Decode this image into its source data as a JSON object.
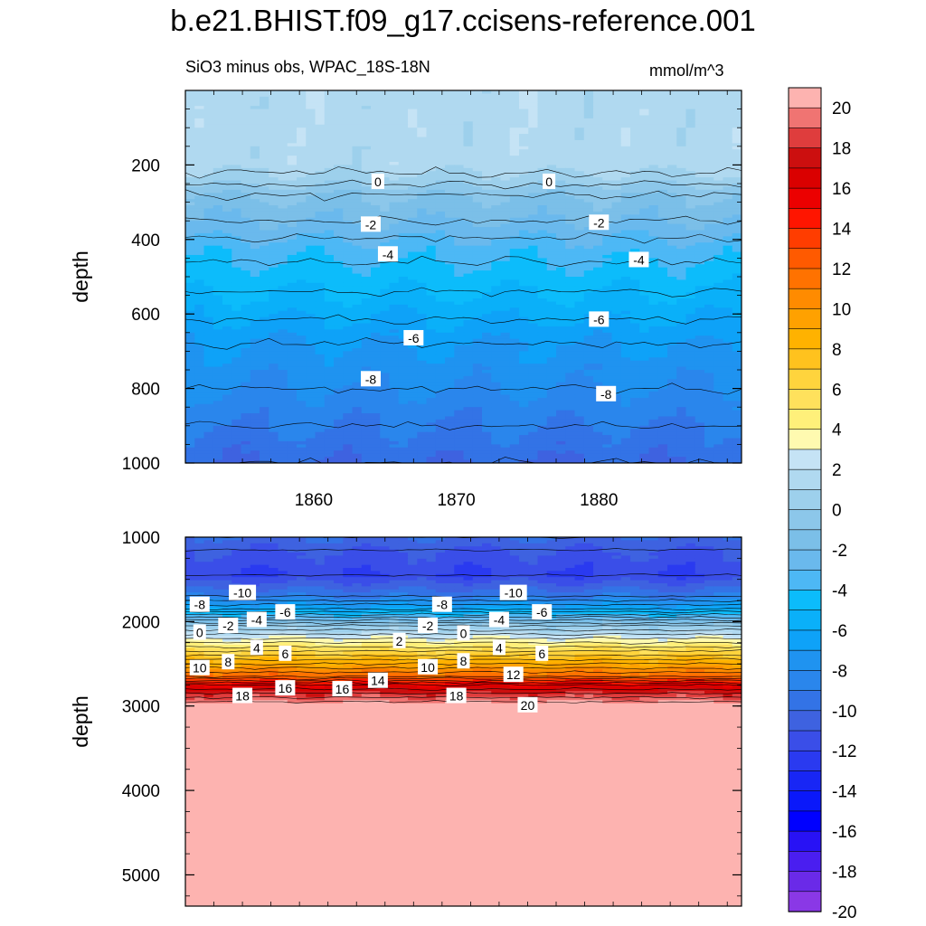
{
  "title": "b.e21.BHIST.f09_g17.ccisens-reference.001",
  "subtitle": "SiO3 minus obs, WPAC_18S-18N",
  "units": "mmol/m^3",
  "chart_data": {
    "type": "heatmap",
    "description": "Depth-time contour plot (filled), two panels",
    "x": {
      "label": "",
      "range": [
        1851,
        1890
      ],
      "ticks": [
        1860,
        1870,
        1880
      ]
    },
    "panels": [
      {
        "name": "upper",
        "ylabel": "depth",
        "yrange": [
          0,
          1000
        ],
        "yticks": [
          200,
          400,
          600,
          800,
          1000
        ],
        "profile": [
          {
            "depth": 0,
            "value": 1.5
          },
          {
            "depth": 200,
            "value": 1.5
          },
          {
            "depth": 240,
            "value": 0.5
          },
          {
            "depth": 280,
            "value": -1
          },
          {
            "depth": 350,
            "value": -2
          },
          {
            "depth": 420,
            "value": -3.5
          },
          {
            "depth": 500,
            "value": -4.5
          },
          {
            "depth": 580,
            "value": -5.5
          },
          {
            "depth": 680,
            "value": -7
          },
          {
            "depth": 800,
            "value": -8
          },
          {
            "depth": 900,
            "value": -9
          },
          {
            "depth": 1000,
            "value": -10
          }
        ],
        "contour_labels": [
          {
            "text": "0",
            "x": 1864.5,
            "depth": 245
          },
          {
            "text": "0",
            "x": 1876.5,
            "depth": 245
          },
          {
            "text": "-2",
            "x": 1864.0,
            "depth": 360
          },
          {
            "text": "-2",
            "x": 1880.0,
            "depth": 355
          },
          {
            "text": "-4",
            "x": 1865.2,
            "depth": 440
          },
          {
            "text": "-4",
            "x": 1882.8,
            "depth": 455
          },
          {
            "text": "-6",
            "x": 1867.0,
            "depth": 665
          },
          {
            "text": "-6",
            "x": 1880.0,
            "depth": 615
          },
          {
            "text": "-8",
            "x": 1864.0,
            "depth": 775
          },
          {
            "text": "-8",
            "x": 1880.5,
            "depth": 815
          }
        ]
      },
      {
        "name": "lower",
        "ylabel": "depth",
        "yrange": [
          1000,
          5370
        ],
        "yticks": [
          1000,
          2000,
          3000,
          4000,
          5000
        ],
        "profile": [
          {
            "depth": 1000,
            "value": -10
          },
          {
            "depth": 1150,
            "value": -11
          },
          {
            "depth": 1450,
            "value": -12
          },
          {
            "depth": 1700,
            "value": -9
          },
          {
            "depth": 1850,
            "value": -6
          },
          {
            "depth": 1950,
            "value": -3
          },
          {
            "depth": 2050,
            "value": 0
          },
          {
            "depth": 2200,
            "value": 3
          },
          {
            "depth": 2350,
            "value": 6
          },
          {
            "depth": 2500,
            "value": 9
          },
          {
            "depth": 2650,
            "value": 12
          },
          {
            "depth": 2750,
            "value": 16
          },
          {
            "depth": 2850,
            "value": 18
          },
          {
            "depth": 2950,
            "value": 20
          },
          {
            "depth": 3000,
            "value": 21
          },
          {
            "depth": 5370,
            "value": 21
          }
        ],
        "contour_labels": [
          {
            "text": "-10",
            "x": 1855.0,
            "depth": 1660
          },
          {
            "text": "-10",
            "x": 1874.0,
            "depth": 1660
          },
          {
            "text": "-8",
            "x": 1852.0,
            "depth": 1800
          },
          {
            "text": "-8",
            "x": 1869.0,
            "depth": 1800
          },
          {
            "text": "-6",
            "x": 1858.0,
            "depth": 1890
          },
          {
            "text": "-6",
            "x": 1876.0,
            "depth": 1890
          },
          {
            "text": "-4",
            "x": 1856.0,
            "depth": 1980
          },
          {
            "text": "-4",
            "x": 1873.0,
            "depth": 1980
          },
          {
            "text": "-2",
            "x": 1854.0,
            "depth": 2050
          },
          {
            "text": "-2",
            "x": 1868.0,
            "depth": 2050
          },
          {
            "text": "0",
            "x": 1852.0,
            "depth": 2130
          },
          {
            "text": "0",
            "x": 1870.5,
            "depth": 2140
          },
          {
            "text": "2",
            "x": 1866.0,
            "depth": 2230
          },
          {
            "text": "4",
            "x": 1856.0,
            "depth": 2310
          },
          {
            "text": "4",
            "x": 1873.0,
            "depth": 2310
          },
          {
            "text": "6",
            "x": 1858.0,
            "depth": 2380
          },
          {
            "text": "6",
            "x": 1876.0,
            "depth": 2380
          },
          {
            "text": "8",
            "x": 1854.0,
            "depth": 2480
          },
          {
            "text": "8",
            "x": 1870.5,
            "depth": 2470
          },
          {
            "text": "10",
            "x": 1852.0,
            "depth": 2550
          },
          {
            "text": "10",
            "x": 1868.0,
            "depth": 2540
          },
          {
            "text": "12",
            "x": 1874.0,
            "depth": 2630
          },
          {
            "text": "14",
            "x": 1864.5,
            "depth": 2700
          },
          {
            "text": "16",
            "x": 1858.0,
            "depth": 2790
          },
          {
            "text": "16",
            "x": 1862.0,
            "depth": 2800
          },
          {
            "text": "18",
            "x": 1855.0,
            "depth": 2880
          },
          {
            "text": "18",
            "x": 1870.0,
            "depth": 2880
          },
          {
            "text": "20",
            "x": 1875.0,
            "depth": 2990
          }
        ]
      }
    ],
    "colorbar": {
      "labels": [
        "20",
        "18",
        "16",
        "14",
        "12",
        "10",
        "8",
        "6",
        "4",
        "2",
        "0",
        "-2",
        "-4",
        "-6",
        "-8",
        "-10",
        "-12",
        "-14",
        "-16",
        "-18",
        "-20"
      ],
      "colors": [
        "#fdb3b0",
        "#f07472",
        "#df3d3d",
        "#cc0f0f",
        "#da0000",
        "#ec0000",
        "#ff1500",
        "#ff3d00",
        "#ff5a00",
        "#ff7200",
        "#ff8b00",
        "#ffa100",
        "#ffb200",
        "#ffc21e",
        "#ffd43d",
        "#ffe15c",
        "#fff07a",
        "#fffab0",
        "#c5e3f5",
        "#b0d9f0",
        "#9dd0ec",
        "#8cc7ea",
        "#7bbfe8",
        "#6ab9ed",
        "#4db8f5",
        "#0cbcfb",
        "#0ab0f9",
        "#0ea2f8",
        "#1f93f0",
        "#2a86ec",
        "#3373e6",
        "#3e62e0",
        "#3a4ee8",
        "#2a3af0",
        "#1826f5",
        "#0a18fa",
        "#0000ff",
        "#2812f5",
        "#4a1ef0",
        "#6a2ae8",
        "#8a38e6"
      ]
    }
  }
}
